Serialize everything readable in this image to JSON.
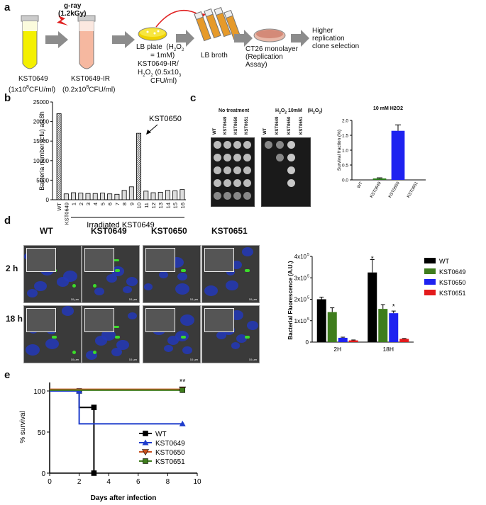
{
  "panels": {
    "a": "a",
    "b": "b",
    "c": "c",
    "d": "d",
    "e": "e"
  },
  "panel_a": {
    "gray_label": "g-ray",
    "dose_label": "(1.2kGy)",
    "tube1_name": "KST0649",
    "tube1_conc": "(1x10",
    "tube1_exp": "8",
    "tube1_unit": "CFU/ml)",
    "tube2_name": "KST0649-IR",
    "tube2_conc": "(0.2x10",
    "tube2_exp": "8",
    "tube2_unit": "CFU/ml)",
    "plate_line1": "LB plate",
    "plate_h2o2": "(H",
    "plate_line2": "= 1mM)",
    "plate_line3": "KST0649-IR/",
    "plate_line4a": "H",
    "plate_line4b": "O",
    "plate_line4c": " (0.5x10",
    "plate_line4d": "3",
    "plate_line5": "CFU/ml)",
    "broth_label": "LB broth",
    "ct26_line1": "CT26 monolayer",
    "ct26_line2": "(Replication",
    "ct26_line3": "Assay)",
    "final_line1": "Higher",
    "final_line2": "replication",
    "final_line3": "clone selection"
  },
  "chart_data": [
    {
      "type": "bar",
      "panel": "b",
      "ylabel": "Bacteria number (cfu) at18h",
      "xlabel": "Irradiated KST0649",
      "annotation": "KST0650",
      "ylim": [
        0,
        25000
      ],
      "yticks": [
        "0",
        "5000",
        "10000",
        "15000",
        "20000",
        "25000"
      ],
      "categories": [
        "WT",
        "KST0649",
        "1",
        "2",
        "3",
        "4",
        "5",
        "6",
        "7",
        "8",
        "9",
        "10",
        "11",
        "12",
        "13",
        "14",
        "15",
        "16"
      ],
      "values": [
        22000,
        1500,
        1800,
        1700,
        1600,
        1600,
        1700,
        1500,
        1400,
        2400,
        3300,
        17000,
        2200,
        1800,
        1900,
        2400,
        2300,
        2600
      ]
    },
    {
      "type": "bar",
      "panel": "c",
      "title": "10 mM H2O2",
      "ylabel": "Survival fraction (%)",
      "ylim": [
        0,
        2.0
      ],
      "yticks": [
        "0.0",
        "0.5",
        "1.0",
        "1.5",
        "2.0"
      ],
      "categories": [
        "WT",
        "KST0649",
        "KST0650",
        "KST0651"
      ],
      "values": [
        0.0,
        0.05,
        1.65,
        0.0
      ],
      "errors": [
        0.0,
        0.02,
        0.2,
        0.0
      ],
      "colors": [
        "#2bb52b",
        "#2a7a1a",
        "#1e22f0",
        "#2bb52b"
      ]
    },
    {
      "type": "bar",
      "panel": "d",
      "ylabel": "Bacterial Fluorescence (A.U.)",
      "ylim": [
        0,
        400000
      ],
      "yticks": [
        "0",
        "1x10^5",
        "2x10^5",
        "3x10^5",
        "4x10^5"
      ],
      "categories": [
        "2H",
        "18H"
      ],
      "series": [
        {
          "name": "WT",
          "values": [
            200000,
            325000
          ],
          "errors": [
            10000,
            60000
          ],
          "color": "#000000"
        },
        {
          "name": "KST0649",
          "values": [
            140000,
            155000
          ],
          "errors": [
            20000,
            20000
          ],
          "color": "#3f7d1d"
        },
        {
          "name": "KST0650",
          "values": [
            20000,
            135000
          ],
          "errors": [
            3000,
            10000
          ],
          "color": "#1e22f0"
        },
        {
          "name": "KST0651",
          "values": [
            8000,
            15000
          ],
          "errors": [
            2000,
            2000
          ],
          "color": "#e31a1c"
        }
      ],
      "significance": [
        "*",
        "*"
      ]
    },
    {
      "type": "line",
      "panel": "e",
      "xlabel": "Days after infection",
      "ylabel": "% survival",
      "xlim": [
        0,
        10
      ],
      "ylim": [
        0,
        100
      ],
      "xticks": [
        "0",
        "2",
        "4",
        "6",
        "8",
        "10"
      ],
      "yticks": [
        "0",
        "50",
        "100"
      ],
      "significance": "**",
      "series": [
        {
          "name": "WT",
          "x": [
            0,
            2,
            2,
            3,
            3
          ],
          "y": [
            100,
            100,
            80,
            80,
            0
          ],
          "color": "#000000",
          "marker": "square"
        },
        {
          "name": "KST0649",
          "x": [
            0,
            2,
            2,
            9
          ],
          "y": [
            100,
            100,
            60,
            60
          ],
          "color": "#1e3ccc",
          "marker": "triangle-up"
        },
        {
          "name": "KST0650",
          "x": [
            0,
            9
          ],
          "y": [
            102,
            102
          ],
          "color": "#c8501e",
          "marker": "triangle-down"
        },
        {
          "name": "KST0651",
          "x": [
            0,
            9
          ],
          "y": [
            101,
            101
          ],
          "color": "#3f7d1d",
          "marker": "square"
        }
      ]
    }
  ],
  "panel_c_plates": {
    "notreat_label": "No treatment",
    "h2o2_label_a": "H",
    "h2o2_label_b": "O",
    "h2o2_label_c": " 10mM",
    "h2o2_paren": "(H",
    "cols": [
      "WT",
      "KST0649",
      "KST0650",
      "KST0651"
    ]
  },
  "panel_d_images": {
    "col_labels": [
      "WT",
      "KST0649",
      "KST0650",
      "KST0651"
    ],
    "row_labels": [
      "2 h",
      "18 h"
    ],
    "scale": "10 µm"
  }
}
